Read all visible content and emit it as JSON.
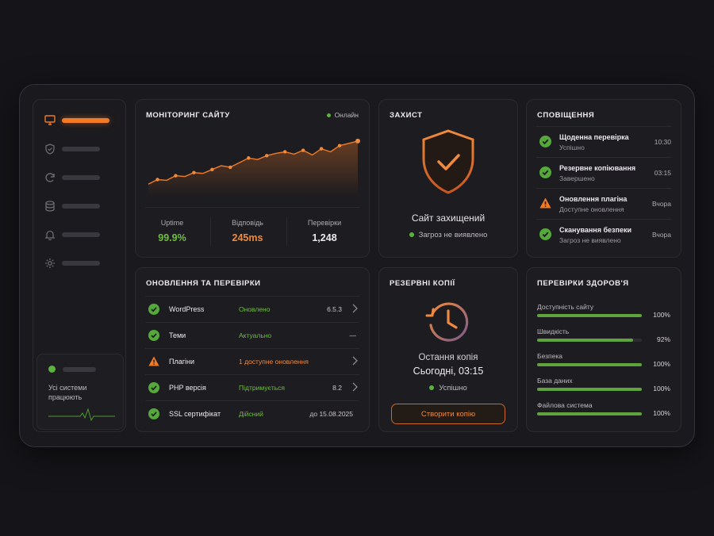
{
  "monitoring": {
    "title": "МОНІТОРИНГ САЙТУ",
    "status": "Онлайн",
    "chart_values": [
      10,
      16,
      15,
      21,
      20,
      25,
      24,
      29,
      34,
      32,
      38,
      44,
      42,
      47,
      50,
      52,
      49,
      54,
      48,
      56,
      52,
      60,
      63,
      66
    ],
    "stats": [
      {
        "label": "Uptime",
        "value": "99.9%",
        "color": "#6fbf3f"
      },
      {
        "label": "Відповідь",
        "value": "245ms",
        "color": "#f08a3c"
      },
      {
        "label": "Перевірки",
        "value": "1,248",
        "color": "#ece8f0"
      }
    ]
  },
  "protection": {
    "title": "ЗАХИСТ",
    "status_text": "Сайт захищений",
    "sub_text": "Загроз не виявлено"
  },
  "notifications": {
    "title": "СПОВІЩЕННЯ",
    "items": [
      {
        "title": "Щоденна перевірка",
        "sub": "Успішно",
        "time": "10:30",
        "icon": "check-icon"
      },
      {
        "title": "Резервне копіювання",
        "sub": "Завершено",
        "time": "03:15",
        "icon": "check-icon"
      },
      {
        "title": "Оновлення плагіна",
        "sub": "Доступне оновлення",
        "time": "Вчора",
        "icon": "warning-icon"
      },
      {
        "title": "Сканування безпеки",
        "sub": "Загроз не виявлено",
        "time": "Вчора",
        "icon": "check-icon"
      }
    ]
  },
  "updates": {
    "title": "ОНОВЛЕННЯ ТА ПЕРЕВІРКИ",
    "rows": [
      {
        "name": "WordPress",
        "status": "Оновлено",
        "version": "6.5.3",
        "icon": "check-icon",
        "status_color": "#6fbf3f"
      },
      {
        "name": "Теми",
        "status": "Актуально",
        "version": "—",
        "icon": "check-icon",
        "status_color": "#6fbf3f"
      },
      {
        "name": "Плагіни",
        "status": "1 доступне оновлення",
        "version": "",
        "icon": "warning-icon",
        "status_color": "#f08a3c"
      },
      {
        "name": "PHP версія",
        "status": "Підтримується",
        "version": "8.2",
        "icon": "check-icon",
        "status_color": "#6fbf3f"
      },
      {
        "name": "SSL сертифікат",
        "status": "Дійсний",
        "version": "до 15.08.2025",
        "icon": "check-icon",
        "status_color": "#6fbf3f"
      }
    ]
  },
  "backups": {
    "title": "РЕЗЕРВНІ КОПІЇ",
    "label": "Остання копія",
    "time": "Сьогодні, 03:15",
    "status": "Успішно",
    "button": "Створити копію"
  },
  "health": {
    "title": "ПЕРЕВІРКИ ЗДОРОВ'Я",
    "items": [
      {
        "label": "Доступність сайту",
        "percent": "100%",
        "value": 100
      },
      {
        "label": "Швидкість",
        "percent": "92%",
        "value": 92
      },
      {
        "label": "Безпека",
        "percent": "100%",
        "value": 100
      },
      {
        "label": "База даних",
        "percent": "100%",
        "value": 100
      },
      {
        "label": "Файлова система",
        "percent": "100%",
        "value": 100
      }
    ]
  },
  "sidebar": {
    "items": [
      "monitor-icon",
      "shield-icon",
      "refresh-icon",
      "database-icon",
      "bell-icon",
      "gear-icon"
    ],
    "status_text": "Усі системи працюють"
  },
  "colors": {
    "accent": "#f07a26",
    "success": "#5ab33b",
    "background": "#151418"
  }
}
